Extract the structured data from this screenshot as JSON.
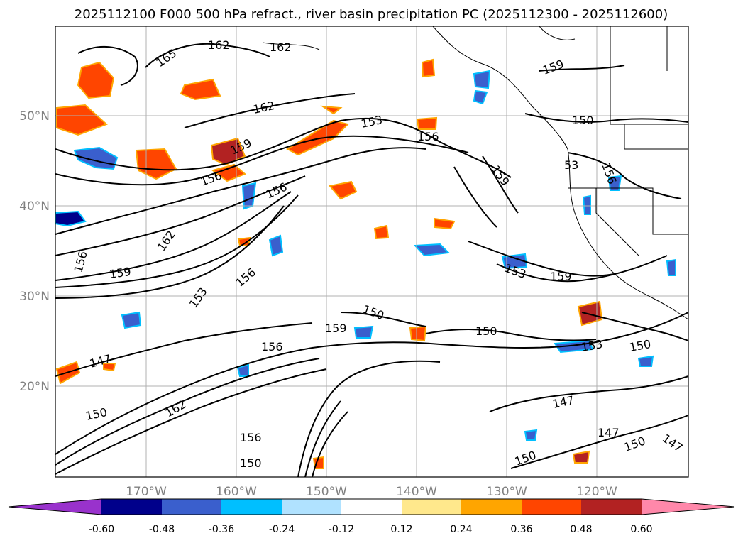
{
  "title": "2025112100 F000 500 hPa refract., river basin precipitation PC (2025112300 - 2025112600)",
  "map": {
    "lon_ticks": [
      "170°W",
      "160°W",
      "150°W",
      "140°W",
      "130°W",
      "120°W"
    ],
    "lat_ticks": [
      "50°N",
      "40°N",
      "30°N",
      "20°N"
    ],
    "gridlines": true,
    "contour_labels": [
      "165",
      "162",
      "162",
      "162",
      "159",
      "156",
      "156",
      "153",
      "156",
      "159",
      "150",
      "53",
      "156",
      "159",
      "162",
      "156",
      "159",
      "156",
      "153",
      "153",
      "159",
      "150",
      "159",
      "150",
      "153",
      "150",
      "147",
      "156",
      "150",
      "162",
      "147",
      "147",
      "150",
      "150",
      "156",
      "150",
      "147",
      "150",
      "162"
    ]
  },
  "colorbar": {
    "levels": [
      "-0.60",
      "-0.48",
      "-0.36",
      "-0.24",
      "-0.12",
      "0.12",
      "0.24",
      "0.36",
      "0.48",
      "0.60"
    ],
    "colors": [
      "#9932cc",
      "#00008b",
      "#3a5fcd",
      "#00bfff",
      "#b0e2ff",
      "#ffffff",
      "#ffe88c",
      "#ffa500",
      "#ff4500",
      "#b22222",
      "#ff88aa"
    ]
  }
}
